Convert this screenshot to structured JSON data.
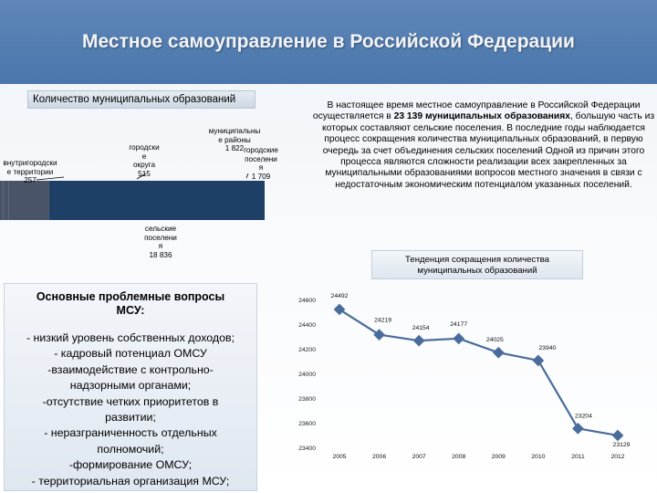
{
  "title": "Местное самоуправление в Российской Федерации",
  "count_header": "Количество муниципальных образований",
  "intro": {
    "part1": "В настоящее время местное самоуправление в Российской Федерации осуществляется в ",
    "bold": "23 139 муниципальных образованиях",
    "part2": ", большую часть из которых составляют сельские поселения. В последние годы наблюдается процесс сокращения количества муниципальных образований, в первую очередь за счет объединения сельских поселений Одной из причин этого процесса являются сложности реализации всех закрепленных за муниципальными образованиями вопросов местного значения в связи с недостаточным экономическим потенциалом указанных поселений."
  },
  "bar_labels": {
    "intracity": [
      "внутригородски",
      "е территории",
      "257"
    ],
    "city_districts": [
      "городски",
      "е",
      "округа",
      "515"
    ],
    "municipal_districts": [
      "муниципальны",
      "е районы",
      "1 822"
    ],
    "urban_settlements": [
      "городские",
      "поселени",
      "я",
      "1 709"
    ],
    "rural_settlements": [
      "сельские",
      "поселени",
      "я",
      "18 836"
    ]
  },
  "tendency_title": "Тенденция сокращения количества муниципальных образований",
  "problems": {
    "title_line1": "Основные проблемные вопросы",
    "title_line2": "МСУ:",
    "items": [
      "- низкий уровень собственных доходов;",
      "- кадровый потенциал ОМСУ",
      "-взаимодействие с контрольно-",
      "надзорными органами;",
      "-отсутствие четких приоритетов в",
      "развитии;",
      "- неразграниченность отдельных",
      "полномочий;",
      "-формирование ОМСУ;",
      "- территориальная организация МСУ;"
    ]
  },
  "chart_data": [
    {
      "type": "bar",
      "orientation": "horizontal-stacked",
      "categories": [
        "внутригородские территории",
        "городские округа",
        "муниципальные районы",
        "городские поселения",
        "сельские поселения"
      ],
      "values": [
        257,
        515,
        1822,
        1709,
        18836
      ],
      "colors": {
        "main": "#4a5468",
        "end": "#1e3f66"
      }
    },
    {
      "type": "line",
      "x": [
        "2005",
        "2006",
        "2007",
        "2008",
        "2009",
        "2010",
        "2011",
        "2012"
      ],
      "y": [
        24492,
        24219,
        24154,
        24177,
        24025,
        23940,
        23204,
        23129
      ],
      "y_labels": [
        "24492",
        "24219",
        "24154",
        "24177",
        "24025",
        "23940",
        "23204",
        "23129"
      ],
      "y_ticks": [
        "24600",
        "24400",
        "24200",
        "24000",
        "23800",
        "23600",
        "23400"
      ],
      "ylim": [
        23000,
        24600
      ],
      "color": "#4a6c9c",
      "grid": false
    }
  ]
}
